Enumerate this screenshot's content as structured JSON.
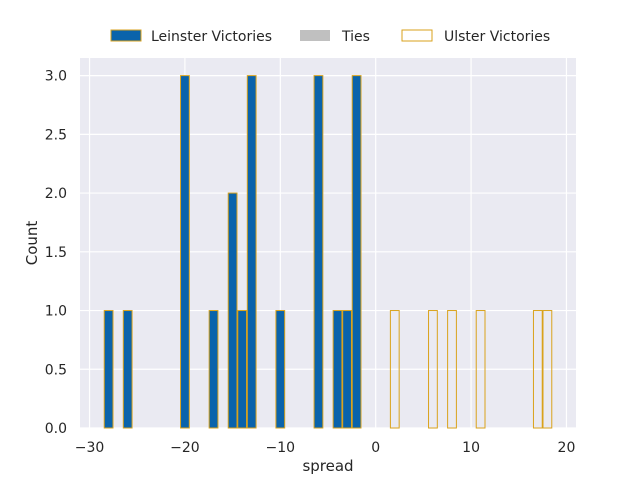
{
  "chart_data": {
    "type": "bar",
    "xlabel": "spread",
    "ylabel": "Count",
    "xlim": [
      -31,
      21
    ],
    "ylim": [
      0,
      3.15
    ],
    "grid": true,
    "legend_placement": "top-center",
    "bin_width": 0.92,
    "x_ticks": [
      -30,
      -20,
      -10,
      0,
      10,
      20
    ],
    "x_tick_labels": [
      "−30",
      "−20",
      "−10",
      "0",
      "10",
      "20"
    ],
    "y_ticks": [
      0,
      0.5,
      1.0,
      1.5,
      2.0,
      2.5,
      3.0
    ],
    "y_tick_labels": [
      "0.0",
      "0.5",
      "1.0",
      "1.5",
      "2.0",
      "2.5",
      "3.0"
    ],
    "colors": {
      "background": "#eaeaf2",
      "grid": "#ffffff",
      "leinster_fill": "#0a63ab",
      "tie_fill": "#c0c0c0",
      "edge": "#d9a21b"
    },
    "series": [
      {
        "name": "Leinster Victories",
        "style": "filled",
        "x": [
          -28,
          -26,
          -20,
          -17,
          -15,
          -14,
          -13,
          -10,
          -6,
          -4,
          -3,
          -2
        ],
        "values": [
          1,
          1,
          3,
          1,
          2,
          1,
          3,
          1,
          3,
          1,
          1,
          3
        ]
      },
      {
        "name": "Ties",
        "style": "filled-gray",
        "x": [],
        "values": []
      },
      {
        "name": "Ulster Victories",
        "style": "outline",
        "x": [
          2,
          6,
          8,
          11,
          17,
          18
        ],
        "values": [
          1,
          1,
          1,
          1,
          1,
          1
        ]
      }
    ]
  }
}
